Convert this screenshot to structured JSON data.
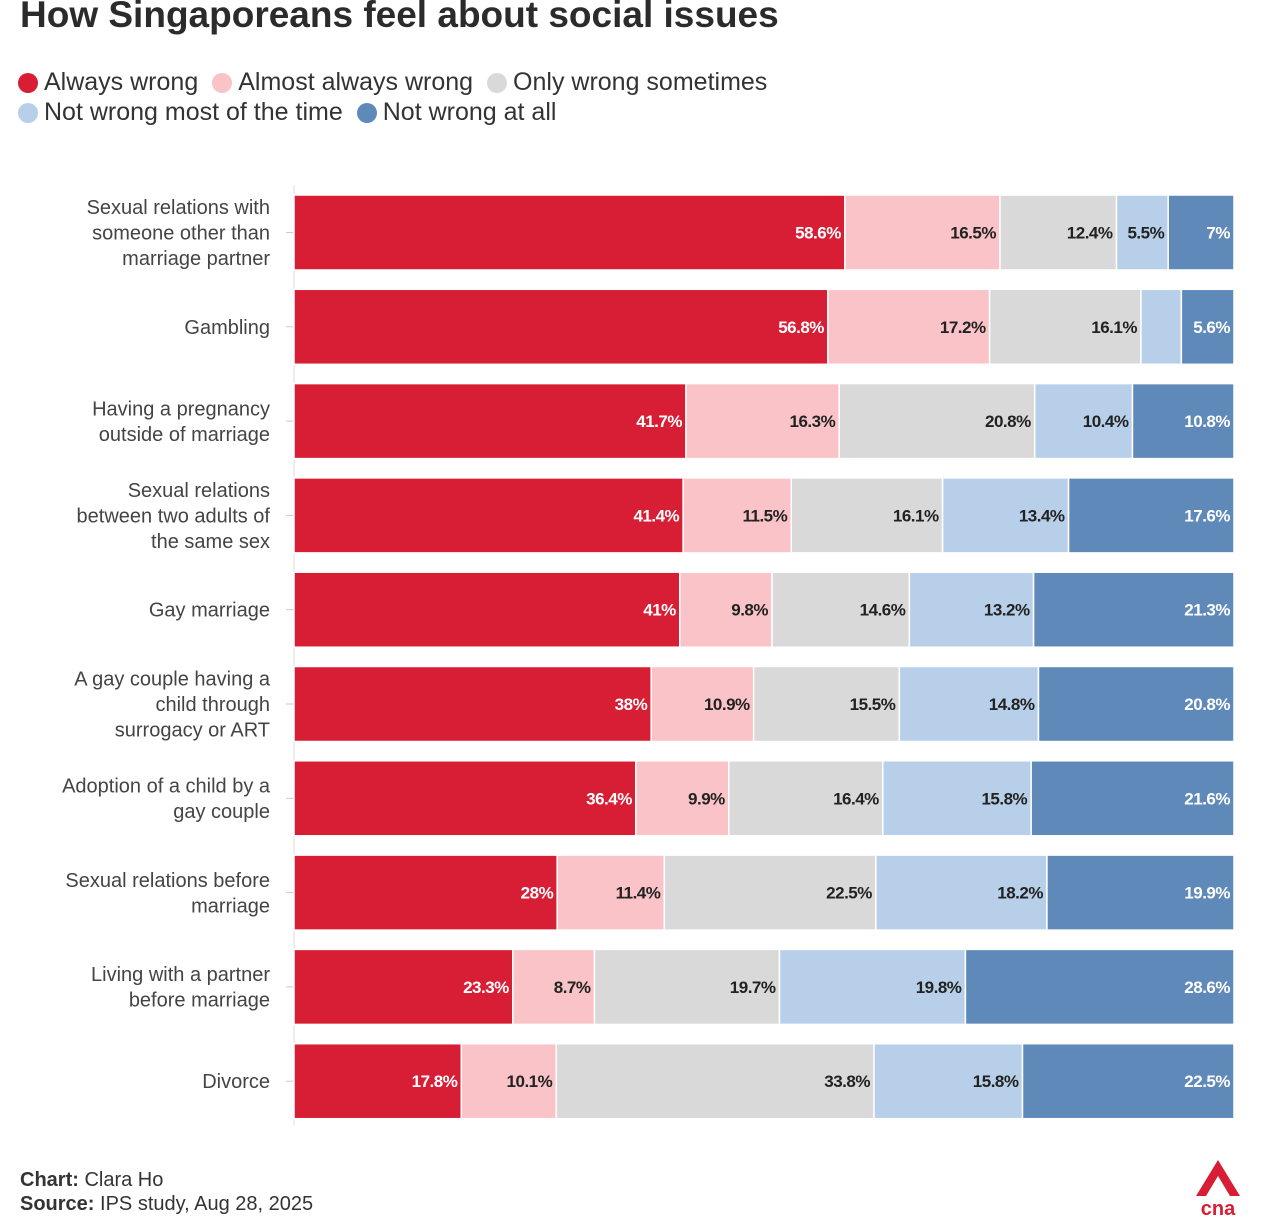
{
  "title": "How Singaporeans feel about social issues",
  "colors": {
    "always_wrong": "#d81e34",
    "almost_always_wrong": "#f9c3c7",
    "only_wrong_sometimes": "#d9d9d9",
    "not_wrong_most": "#b7cfe8",
    "not_wrong_at_all": "#5f89b8",
    "logo": "#d81e34"
  },
  "credits": {
    "chart_label": "Chart:",
    "chart_value": "Clara Ho",
    "source_label": "Source:",
    "source_value": "IPS study, Aug 28, 2025"
  },
  "logo_text": "cna",
  "chart_data": {
    "type": "bar",
    "orientation": "horizontal",
    "stacked": true,
    "legend_position": "top-left",
    "categories": [
      "Sexual relations with someone other than marriage partner",
      "Gambling",
      "Having a pregnancy outside of marriage",
      "Sexual relations between two adults of the same sex",
      "Gay marriage",
      "A gay couple having a child through surrogacy or ART",
      "Adoption of a child by a gay couple",
      "Sexual relations before marriage",
      "Living with a partner before marriage",
      "Divorce"
    ],
    "category_lines": [
      [
        "Sexual relations with",
        "someone other than",
        "marriage partner"
      ],
      [
        "Gambling"
      ],
      [
        "Having a pregnancy",
        "outside of marriage"
      ],
      [
        "Sexual relations",
        "between two adults of",
        "the same sex"
      ],
      [
        "Gay marriage"
      ],
      [
        "A gay couple having a",
        "child through",
        "surrogacy or ART"
      ],
      [
        "Adoption of a child by a",
        "gay couple"
      ],
      [
        "Sexual relations before",
        "marriage"
      ],
      [
        "Living with a partner",
        "before marriage"
      ],
      [
        "Divorce"
      ]
    ],
    "series": [
      {
        "name": "Always wrong",
        "color_key": "always_wrong",
        "label_color": "#ffffff",
        "values": [
          58.6,
          56.8,
          41.7,
          41.4,
          41,
          38,
          36.4,
          28,
          23.3,
          17.8
        ],
        "labels": [
          "58.6%",
          "56.8%",
          "41.7%",
          "41.4%",
          "41%",
          "38%",
          "36.4%",
          "28%",
          "23.3%",
          "17.8%"
        ]
      },
      {
        "name": "Almost always wrong",
        "color_key": "almost_always_wrong",
        "label_color": "#222222",
        "values": [
          16.5,
          17.2,
          16.3,
          11.5,
          9.8,
          10.9,
          9.9,
          11.4,
          8.7,
          10.1
        ],
        "labels": [
          "16.5%",
          "17.2%",
          "16.3%",
          "11.5%",
          "9.8%",
          "10.9%",
          "9.9%",
          "11.4%",
          "8.7%",
          "10.1%"
        ]
      },
      {
        "name": "Only wrong sometimes",
        "color_key": "only_wrong_sometimes",
        "label_color": "#222222",
        "values": [
          12.4,
          16.1,
          20.8,
          16.1,
          14.6,
          15.5,
          16.4,
          22.5,
          19.7,
          33.8
        ],
        "labels": [
          "12.4%",
          "16.1%",
          "20.8%",
          "16.1%",
          "14.6%",
          "15.5%",
          "16.4%",
          "22.5%",
          "19.7%",
          "33.8%"
        ]
      },
      {
        "name": "Not wrong most of the time",
        "color_key": "not_wrong_most",
        "label_color": "#222222",
        "values": [
          5.5,
          4.3,
          10.4,
          13.4,
          13.2,
          14.8,
          15.8,
          18.2,
          19.8,
          15.8
        ],
        "labels": [
          "5.5%",
          "",
          "10.4%",
          "13.4%",
          "13.2%",
          "14.8%",
          "15.8%",
          "18.2%",
          "19.8%",
          "15.8%"
        ]
      },
      {
        "name": "Not wrong at all",
        "color_key": "not_wrong_at_all",
        "label_color": "#ffffff",
        "values": [
          7,
          5.6,
          10.8,
          17.6,
          21.3,
          20.8,
          21.6,
          19.9,
          28.6,
          22.5
        ],
        "labels": [
          "7%",
          "5.6%",
          "10.8%",
          "17.6%",
          "21.3%",
          "20.8%",
          "21.6%",
          "19.9%",
          "28.6%",
          "22.5%"
        ]
      }
    ],
    "xlim": [
      0,
      100
    ],
    "grid": false
  }
}
